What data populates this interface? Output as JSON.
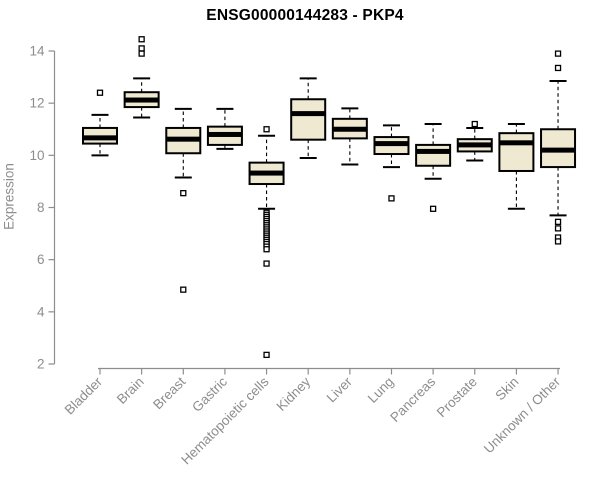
{
  "title": "ENSG00000144283 - PKP4",
  "chart_data": {
    "type": "boxplot",
    "title": "ENSG00000144283 - PKP4",
    "xlabel": "",
    "ylabel": "Expression",
    "ylim": [
      2,
      14
    ],
    "yticks": [
      2,
      4,
      6,
      8,
      10,
      12,
      14
    ],
    "grid": false,
    "legend": "none",
    "categories": [
      "Bladder",
      "Brain",
      "Breast",
      "Gastric",
      "Hematopoietic cells",
      "Kidney",
      "Liver",
      "Lung",
      "Pancreas",
      "Prostate",
      "Skin",
      "Unknown / Other"
    ],
    "boxes": [
      {
        "category": "Bladder",
        "whislo": 10.0,
        "q1": 10.45,
        "median": 10.67,
        "q3": 11.05,
        "whishi": 11.55,
        "outliers": [
          12.4
        ]
      },
      {
        "category": "Brain",
        "whislo": 11.45,
        "q1": 11.85,
        "median": 12.12,
        "q3": 12.42,
        "whishi": 12.95,
        "outliers": [
          14.45,
          14.1,
          13.9
        ]
      },
      {
        "category": "Breast",
        "whislo": 9.15,
        "q1": 10.08,
        "median": 10.62,
        "q3": 11.05,
        "whishi": 11.78,
        "outliers": [
          8.55,
          4.85
        ]
      },
      {
        "category": "Gastric",
        "whislo": 10.25,
        "q1": 10.4,
        "median": 10.8,
        "q3": 11.1,
        "whishi": 11.78,
        "outliers": []
      },
      {
        "category": "Hematopoietic cells",
        "whislo": 7.95,
        "q1": 8.9,
        "median": 9.32,
        "q3": 9.72,
        "whishi": 10.75,
        "outliers": [
          11.0,
          7.8,
          7.72,
          7.64,
          7.56,
          7.48,
          7.4,
          7.32,
          7.24,
          7.16,
          7.08,
          7.0,
          6.92,
          6.84,
          6.76,
          6.68,
          6.6,
          6.5,
          6.4,
          5.85,
          2.35
        ]
      },
      {
        "category": "Kidney",
        "whislo": 9.9,
        "q1": 10.6,
        "median": 11.6,
        "q3": 12.15,
        "whishi": 12.95,
        "outliers": []
      },
      {
        "category": "Liver",
        "whislo": 9.65,
        "q1": 10.65,
        "median": 11.0,
        "q3": 11.4,
        "whishi": 11.8,
        "outliers": []
      },
      {
        "category": "Lung",
        "whislo": 9.55,
        "q1": 10.05,
        "median": 10.45,
        "q3": 10.7,
        "whishi": 11.15,
        "outliers": [
          8.35
        ]
      },
      {
        "category": "Pancreas",
        "whislo": 9.1,
        "q1": 9.6,
        "median": 10.15,
        "q3": 10.4,
        "whishi": 11.2,
        "outliers": [
          7.95
        ]
      },
      {
        "category": "Prostate",
        "whislo": 9.8,
        "q1": 10.15,
        "median": 10.4,
        "q3": 10.62,
        "whishi": 11.05,
        "outliers": [
          11.2
        ]
      },
      {
        "category": "Skin",
        "whislo": 7.95,
        "q1": 9.4,
        "median": 10.48,
        "q3": 10.85,
        "whishi": 11.2,
        "outliers": []
      },
      {
        "category": "Unknown / Other",
        "whislo": 7.7,
        "q1": 9.55,
        "median": 10.2,
        "q3": 11.0,
        "whishi": 12.85,
        "outliers": [
          13.9,
          13.35,
          7.45,
          7.2,
          6.85,
          6.7
        ]
      }
    ],
    "colors": {
      "box_fill": "#efe9d1",
      "box_border": "#000000",
      "median": "#000000",
      "whisker": "#000000",
      "outlier_border": "#000000",
      "outlier_fill": "#ffffff",
      "axis": "#8d8d8d",
      "tick_text": "#8d8d8d",
      "title_text": "#000000",
      "background": "#ffffff"
    }
  }
}
